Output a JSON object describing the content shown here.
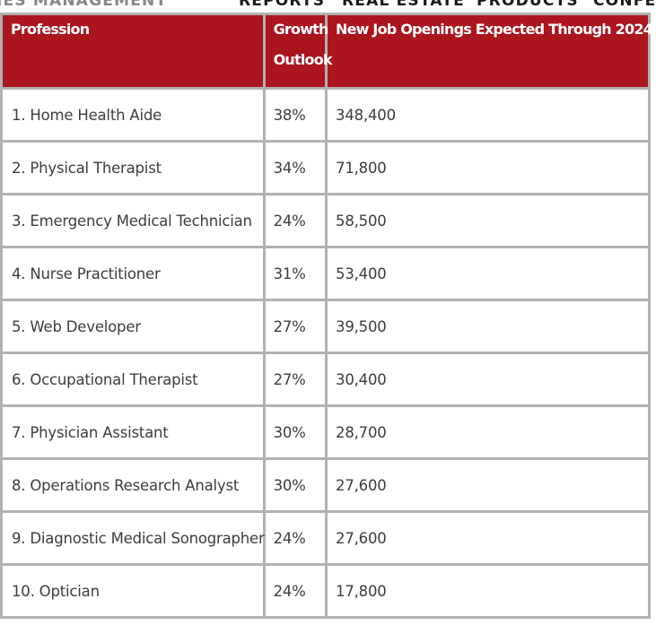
{
  "nav": {
    "items": [
      "IES MANAGEMENT",
      "REPORTS",
      "REAL ESTATE",
      "PRODUCTS",
      "CONFE"
    ]
  },
  "table": {
    "headers": {
      "profession": "Profession",
      "growth_line1": "Growth",
      "growth_line2": "Outlook",
      "openings": "New Job Openings Expected Through 2024"
    },
    "rows": [
      {
        "profession": "1. Home Health Aide",
        "growth": "38%",
        "openings": "348,400"
      },
      {
        "profession": "2. Physical Therapist",
        "growth": "34%",
        "openings": "71,800"
      },
      {
        "profession": "3. Emergency Medical Technician",
        "growth": "24%",
        "openings": "58,500"
      },
      {
        "profession": "4. Nurse Practitioner",
        "growth": "31%",
        "openings": "53,400"
      },
      {
        "profession": "5. Web Developer",
        "growth": "27%",
        "openings": "39,500"
      },
      {
        "profession": "6. Occupational Therapist",
        "growth": "27%",
        "openings": "30,400"
      },
      {
        "profession": "7. Physician Assistant",
        "growth": "30%",
        "openings": "28,700"
      },
      {
        "profession": "8. Operations Research Analyst",
        "growth": "30%",
        "openings": "27,600"
      },
      {
        "profession": "9. Diagnostic Medical Sonographer",
        "growth": "24%",
        "openings": "27,600"
      },
      {
        "profession": "10. Optician",
        "growth": "24%",
        "openings": "17,800"
      }
    ]
  },
  "colors": {
    "header_bg": "#ab151e",
    "header_text": "#ffffff",
    "border": "#b2b2b2",
    "cell_text": "#3d3d3d"
  }
}
